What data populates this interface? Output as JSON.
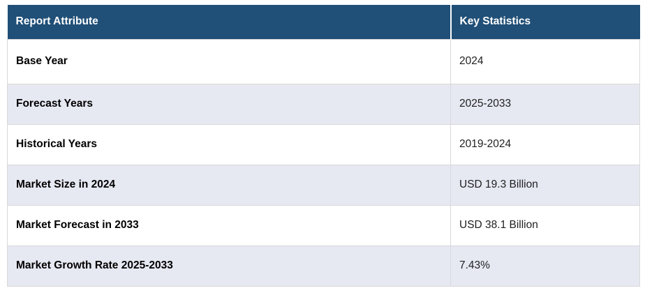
{
  "colors": {
    "header_bg": "#204f77",
    "header_text": "#ffffff",
    "row_bg": "#ffffff",
    "row_alt_bg": "#e6e8f2",
    "cell_border": "#d9d9d9",
    "attribute_text": "#000000",
    "value_text": "#1f1f1f"
  },
  "table": {
    "header": {
      "attribute": "Report Attribute",
      "value": "Key Statistics"
    },
    "rows": [
      {
        "attribute": "Base Year",
        "value": "2024"
      },
      {
        "attribute": "Forecast Years",
        "value": "2025-2033"
      },
      {
        "attribute": "Historical Years",
        "value": "2019-2024"
      },
      {
        "attribute": "Market Size in 2024",
        "value": "USD 19.3 Billion"
      },
      {
        "attribute": "Market Forecast in 2033",
        "value": "USD 38.1 Billion"
      },
      {
        "attribute": "Market Growth Rate 2025-2033",
        "value": "7.43%"
      }
    ]
  },
  "chart_data": {
    "type": "table",
    "columns": [
      "Report Attribute",
      "Key Statistics"
    ],
    "rows": [
      [
        "Base Year",
        "2024"
      ],
      [
        "Forecast Years",
        "2025-2033"
      ],
      [
        "Historical Years",
        "2019-2024"
      ],
      [
        "Market Size in 2024",
        "USD 19.3 Billion"
      ],
      [
        "Market Forecast in 2033",
        "USD 38.1 Billion"
      ],
      [
        "Market Growth Rate 2025-2033",
        "7.43%"
      ]
    ],
    "title": "",
    "legend": false,
    "grid": true
  }
}
